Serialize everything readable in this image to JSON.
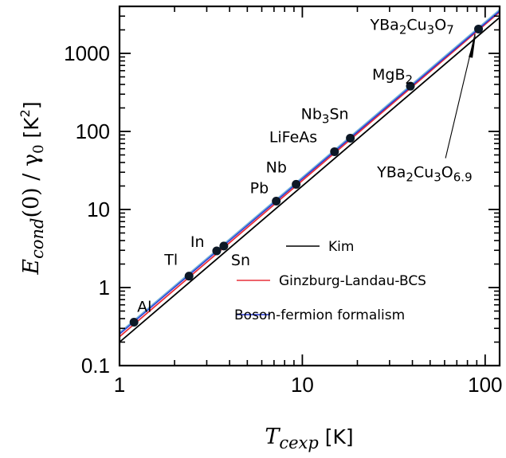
{
  "chart_data": {
    "type": "scatter",
    "x_scale": "log",
    "y_scale": "log",
    "xlim": [
      1,
      120
    ],
    "ylim": [
      0.1,
      4000
    ],
    "grid": false,
    "legend_position": "lower-right",
    "x_ticks": [
      {
        "value": 1,
        "label": "1"
      },
      {
        "value": 10,
        "label": "10"
      },
      {
        "value": 100,
        "label": "100"
      }
    ],
    "y_ticks": [
      {
        "value": 0.1,
        "label": "0.1"
      },
      {
        "value": 1,
        "label": "1"
      },
      {
        "value": 10,
        "label": "10"
      },
      {
        "value": 100,
        "label": "100"
      },
      {
        "value": 1000,
        "label": "1000"
      }
    ],
    "xlabel": {
      "symbol": "T",
      "subscript": "cexp",
      "unit": "[K]"
    },
    "ylabel": {
      "symbol": "E",
      "subscript": "cond",
      "arg": "(0) / γ",
      "arg_subscript": "0",
      "unit_open": "[K",
      "unit_sup": "2",
      "unit_close": "]"
    },
    "points": [
      {
        "label": "Al",
        "x": 1.2,
        "y": 0.36
      },
      {
        "label": "Tl",
        "x": 2.4,
        "y": 1.4
      },
      {
        "label": "In",
        "x": 3.4,
        "y": 2.95
      },
      {
        "label": "Sn",
        "x": 3.72,
        "y": 3.4
      },
      {
        "label": "Pb",
        "x": 7.2,
        "y": 12.8
      },
      {
        "label": "Nb",
        "x": 9.25,
        "y": 21
      },
      {
        "label": "LiFeAs",
        "x": 15,
        "y": 55
      },
      {
        "label": "Nb3Sn",
        "label_parts": [
          "Nb",
          "3",
          "Sn"
        ],
        "x": 18.3,
        "y": 82
      },
      {
        "label": "MgB2",
        "label_parts": [
          "MgB",
          "2"
        ],
        "x": 39,
        "y": 380
      },
      {
        "label": "YBa2Cu3O7",
        "label_parts": [
          "YBa",
          "2",
          "Cu",
          "3",
          "O",
          "7"
        ],
        "x": 92,
        "y": 2050
      },
      {
        "label": "YBa2Cu3O6.9",
        "label_parts": [
          "YBa",
          "2",
          "Cu",
          "3",
          "O",
          "6.9"
        ],
        "x": 88,
        "y": 1950
      }
    ],
    "series": [
      {
        "name": "Kim",
        "color": "#000000",
        "coef": 0.2,
        "exp": 2
      },
      {
        "name": "Ginzburg-Landau-BCS",
        "color": "#e8303a",
        "coef": 0.235,
        "exp": 2
      },
      {
        "name": "Boson-fermion formalism",
        "color": "#2436d8",
        "coef": 0.255,
        "exp": 1.99
      }
    ],
    "overlay_color": "#6aaed6",
    "point_color": "#0d1826"
  }
}
